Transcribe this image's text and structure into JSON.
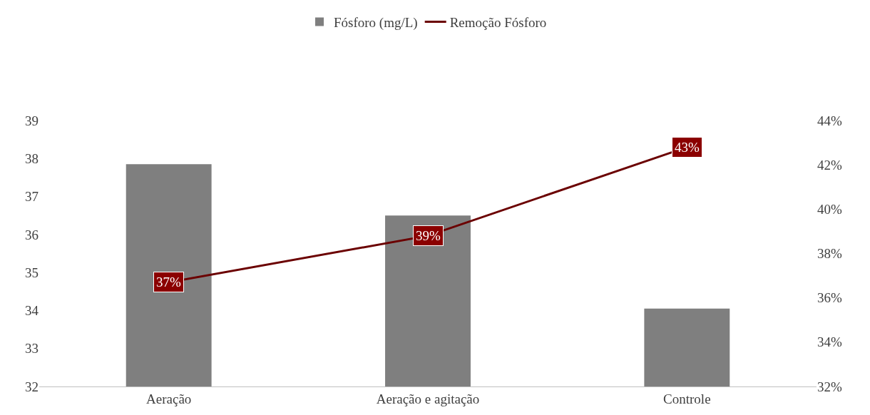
{
  "chart_data": {
    "type": "bar",
    "categories": [
      "Aeração",
      "Aeração e agitação",
      "Controle"
    ],
    "series": [
      {
        "name": "Fósforo (mg/L)",
        "color": "#7f7f7f",
        "values": [
          37.85,
          36.5,
          34.05
        ]
      },
      {
        "name": "Remoção Fósforo",
        "type": "line",
        "marker": "square",
        "axis": "y2",
        "color": "#6b0000",
        "values": [
          36.7,
          38.8,
          42.8
        ],
        "value_labels": [
          "37%",
          "39%",
          "43%"
        ]
      }
    ],
    "ylim": [
      32,
      39
    ],
    "yticks": [
      32,
      33,
      34,
      35,
      36,
      37,
      38,
      39
    ],
    "y2lim": [
      32,
      44
    ],
    "y2ticks": [
      {
        "value": 32,
        "label": "32%"
      },
      {
        "value": 34,
        "label": "34%"
      },
      {
        "value": 36,
        "label": "36%"
      },
      {
        "value": 38,
        "label": "38%"
      },
      {
        "value": 40,
        "label": "40%"
      },
      {
        "value": 42,
        "label": "42%"
      },
      {
        "value": 44,
        "label": "44%"
      }
    ],
    "grid": false,
    "legend": "top",
    "line_style": "solid"
  }
}
